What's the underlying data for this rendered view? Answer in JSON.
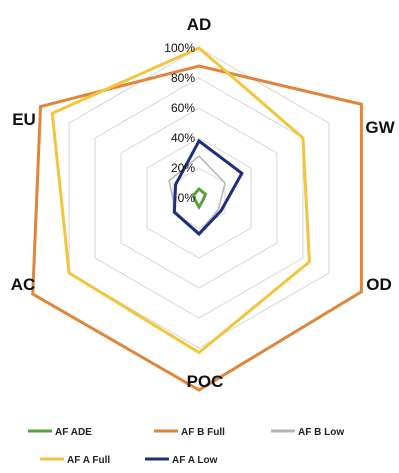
{
  "chart_data": {
    "type": "radar",
    "title": "",
    "axes": [
      "AD",
      "GW",
      "OD",
      "POC",
      "AC",
      "EU"
    ],
    "rlim": [
      0,
      100
    ],
    "ticks": [
      "0%",
      "20%",
      "40%",
      "60%",
      "80%",
      "100%"
    ],
    "tick_values": [
      0,
      20,
      40,
      60,
      80,
      100
    ],
    "grid": true,
    "legend_position": "bottom",
    "series": [
      {
        "name": "AF ADE",
        "color": "#5aa03c",
        "values": [
          6,
          5,
          3,
          6,
          3,
          4
        ]
      },
      {
        "name": "AF B Full",
        "color": "#e0853a",
        "values": [
          88,
          125,
          125,
          128,
          128,
          122
        ]
      },
      {
        "name": "AF B Low",
        "color": "#b5b5b5",
        "values": [
          28,
          20,
          15,
          23,
          18,
          23
        ]
      },
      {
        "name": "AF A Full",
        "color": "#f2c53a",
        "values": [
          100,
          80,
          85,
          103,
          100,
          113
        ]
      },
      {
        "name": "AF A Low",
        "color": "#1f2f7a",
        "values": [
          38,
          33,
          17,
          24,
          19,
          18
        ]
      }
    ]
  }
}
